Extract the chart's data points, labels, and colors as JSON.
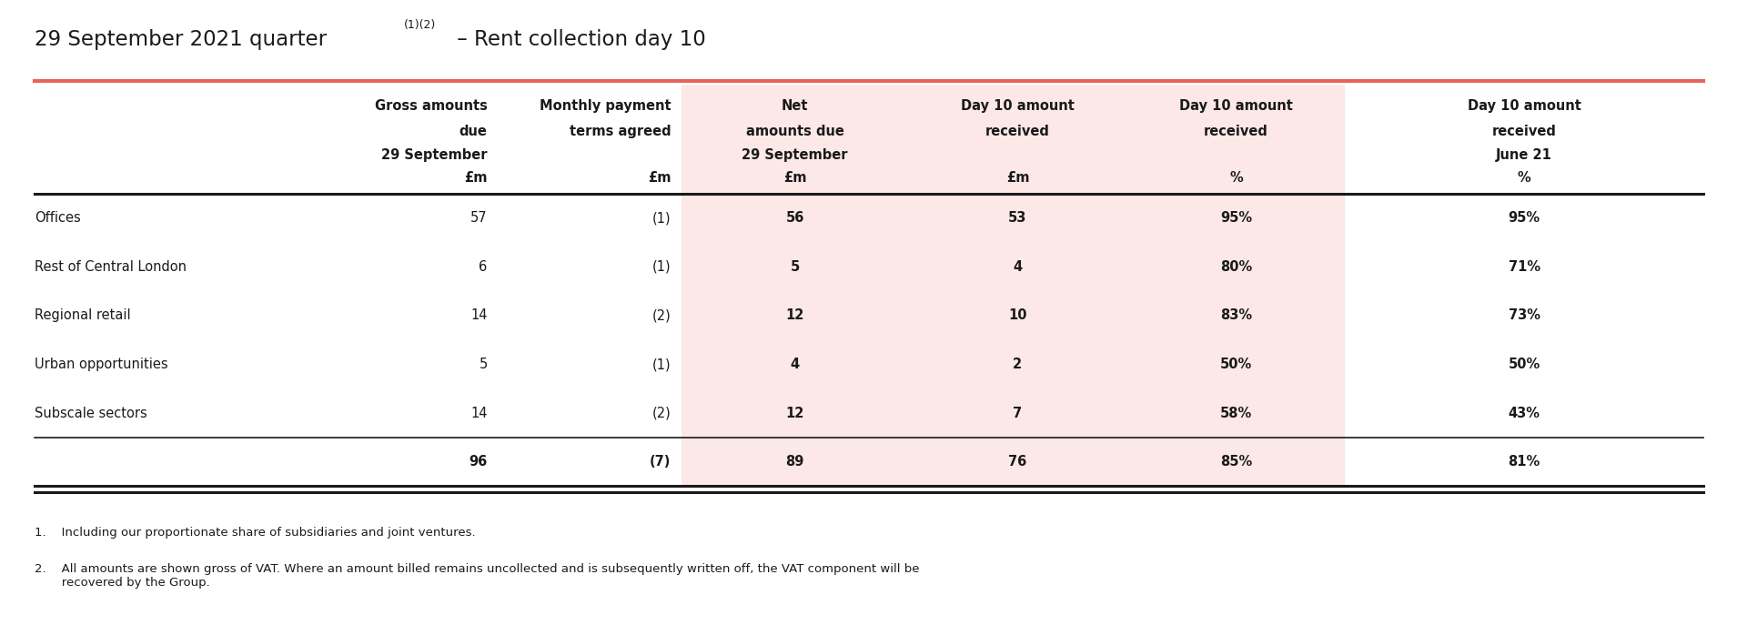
{
  "title_main": "29 September 2021 quarter",
  "title_super": "(1)(2)",
  "title_dash": " – Rent collection day 10",
  "col_header_line1": [
    "Gross amounts",
    "Monthly payment",
    "Net",
    "Day 10 amount",
    "Day 10 amount",
    "Day 10 amount"
  ],
  "col_header_line2": [
    "due",
    "terms agreed",
    "amounts due",
    "received",
    "received",
    "received"
  ],
  "col_header_line3": [
    "29 September",
    "",
    "29 September",
    "",
    "",
    "June 21"
  ],
  "col_header_line4": [
    "£m",
    "£m",
    "£m",
    "£m",
    "%",
    "%"
  ],
  "rows": [
    [
      "Offices",
      "57",
      "(1)",
      "56",
      "53",
      "95%",
      "95%"
    ],
    [
      "Rest of Central London",
      "6",
      "(1)",
      "5",
      "4",
      "80%",
      "71%"
    ],
    [
      "Regional retail",
      "14",
      "(2)",
      "12",
      "10",
      "83%",
      "73%"
    ],
    [
      "Urban opportunities",
      "5",
      "(1)",
      "4",
      "2",
      "50%",
      "50%"
    ],
    [
      "Subscale sectors",
      "14",
      "(2)",
      "12",
      "7",
      "58%",
      "43%"
    ]
  ],
  "total_row": [
    "",
    "96",
    "(7)",
    "89",
    "76",
    "85%",
    "81%"
  ],
  "footnote1": "1.    Including our proportionate share of subsidiaries and joint ventures.",
  "footnote2": "2.    All amounts are shown gross of VAT. Where an amount billed remains uncollected and is subsequently written off, the VAT component will be\n       recovered by the Group.",
  "highlight_color": "#fce8e6",
  "title_line_color": "#e8635a",
  "bg_color": "#ffffff",
  "text_color": "#1a1a1a"
}
